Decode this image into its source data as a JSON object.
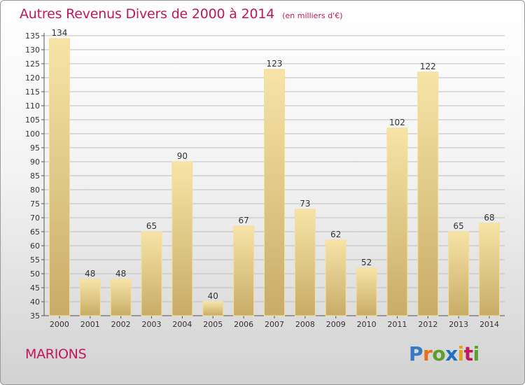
{
  "title": "Autres Revenus Divers de 2000 à 2014",
  "subtitle": "(en milliers d'€)",
  "place": "MARIONS",
  "logo": {
    "letters": [
      "P",
      "r",
      "o",
      "x",
      "i",
      "t",
      "i"
    ],
    "colors": [
      "#3a78c2",
      "#e8701c",
      "#5aa02c",
      "#1f6fbf",
      "#e2a21a",
      "#c0185a",
      "#5aa02c"
    ]
  },
  "colors": {
    "title": "#c0185a",
    "bar_top": "#f7e4a6",
    "bar_bottom": "#c8ac67",
    "grid": "#bfbfbf"
  },
  "chart_data": {
    "type": "bar",
    "categories": [
      "2000",
      "2001",
      "2002",
      "2003",
      "2004",
      "2005",
      "2006",
      "2007",
      "2008",
      "2009",
      "2010",
      "2011",
      "2012",
      "2013",
      "2014"
    ],
    "values": [
      134,
      48,
      48,
      65,
      90,
      40,
      67,
      123,
      73,
      62,
      52,
      102,
      122,
      65,
      68
    ],
    "ylim": [
      35,
      135
    ],
    "ytick_step": 5,
    "grid": true,
    "data_labels": true
  }
}
